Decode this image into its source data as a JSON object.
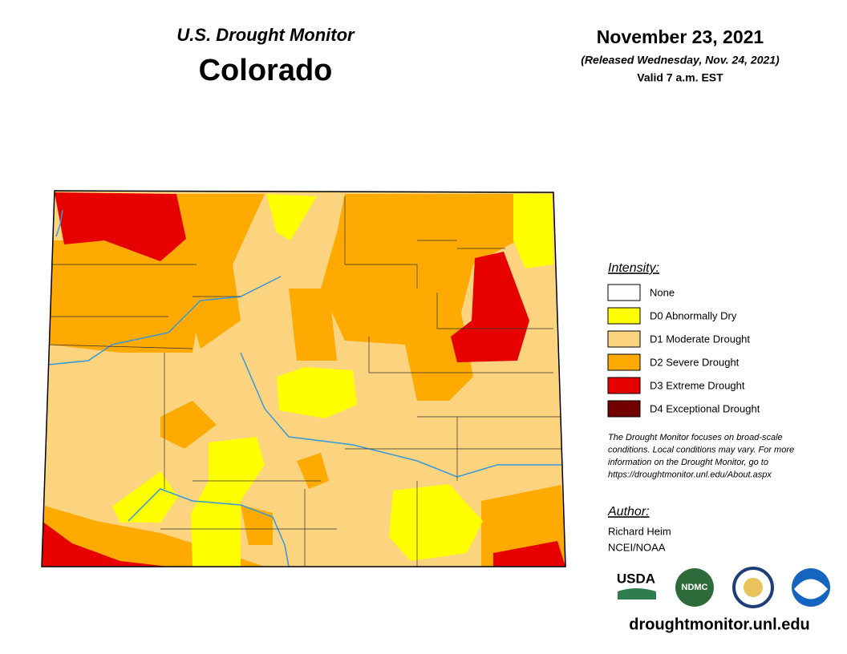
{
  "header": {
    "title": "U.S. Drought Monitor",
    "state": "Colorado",
    "date": "November 23, 2021",
    "released": "(Released Wednesday, Nov. 24, 2021)",
    "valid": "Valid 7 a.m. EST"
  },
  "legend": {
    "title": "Intensity:",
    "items": [
      {
        "label": "None",
        "color": "#ffffff"
      },
      {
        "label": "D0 Abnormally Dry",
        "color": "#ffff00"
      },
      {
        "label": "D1 Moderate Drought",
        "color": "#fcd37f"
      },
      {
        "label": "D2 Severe Drought",
        "color": "#ffaa00"
      },
      {
        "label": "D3 Extreme Drought",
        "color": "#e60000"
      },
      {
        "label": "D4 Exceptional Drought",
        "color": "#730000"
      }
    ]
  },
  "note": [
    "The Drought Monitor focuses on broad-scale",
    "conditions. Local conditions may vary. For more",
    "information on the Drought Monitor, go to",
    "https://droughtmonitor.unl.edu/About.aspx"
  ],
  "author": {
    "title": "Author:",
    "name": "Richard Heim",
    "org": "NCEI/NOAA"
  },
  "logos": [
    "USDA",
    "NDMC"
  ],
  "url": "droughtmonitor.unl.edu"
}
